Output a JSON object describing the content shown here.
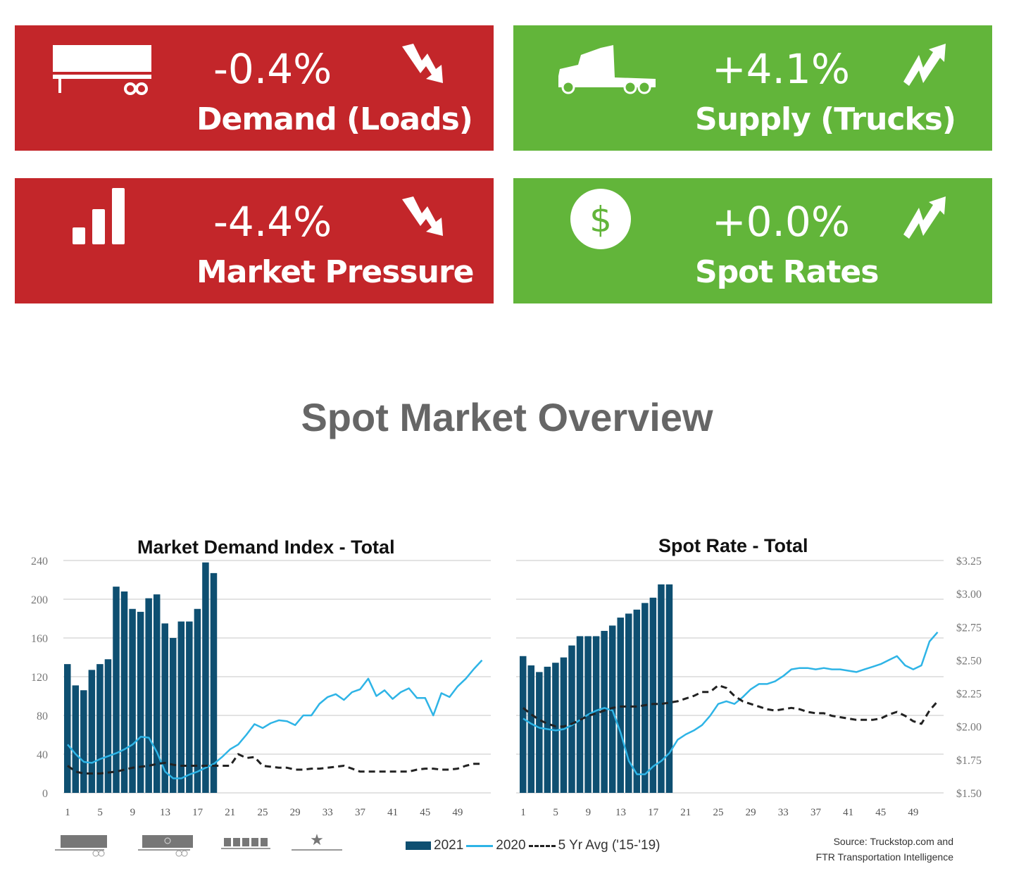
{
  "colors": {
    "red": "#c3262a",
    "green": "#62b53a",
    "bar": "#0e4f71",
    "line2020": "#2eb4e6",
    "avg": "#222222",
    "grid": "#e3e3e3"
  },
  "cards": [
    {
      "value": "-0.4%",
      "label": "Demand (Loads)",
      "icon": "trailer-icon",
      "trend": "trend-down-icon"
    },
    {
      "value": "+4.1%",
      "label": "Supply (Trucks)",
      "icon": "truck-icon",
      "trend": "trend-up-icon"
    },
    {
      "value": "-4.4%",
      "label": "Market Pressure",
      "icon": "bar-chart-icon",
      "trend": "trend-down-icon"
    },
    {
      "value": "+0.0%",
      "label": "Spot Rates",
      "icon": "dollar-icon",
      "trend": "trend-up-icon"
    }
  ],
  "section_title": "Spot Market Overview",
  "legend": {
    "s2021": "2021",
    "s2020": "2020",
    "avg": "5 Yr Avg ('15-'19)"
  },
  "source": {
    "line1": "Source: Truckstop.com and",
    "line2": "FTR Transportation Intelligence"
  },
  "chart_data": [
    {
      "type": "bar",
      "title": "Market Demand Index - Total",
      "ylim": [
        0,
        240
      ],
      "yticks": [
        "0",
        "40",
        "80",
        "120",
        "160",
        "200",
        "240"
      ],
      "xticks": [
        "1",
        "5",
        "9",
        "13",
        "17",
        "21",
        "25",
        "29",
        "33",
        "37",
        "41",
        "45",
        "49"
      ],
      "grid": true,
      "series": [
        {
          "name": "2021",
          "type": "bar",
          "values": [
            133,
            111,
            106,
            127,
            133,
            138,
            213,
            208,
            190,
            187,
            201,
            205,
            175,
            160,
            177,
            177,
            190,
            238,
            227
          ]
        },
        {
          "name": "2020",
          "type": "line",
          "values": [
            50,
            40,
            32,
            31,
            35,
            38,
            41,
            45,
            50,
            58,
            57,
            42,
            22,
            15,
            15,
            19,
            22,
            26,
            30,
            37,
            45,
            50,
            60,
            71,
            67,
            72,
            75,
            74,
            70,
            80,
            80,
            92,
            99,
            102,
            96,
            104,
            107,
            118,
            100,
            106,
            97,
            104,
            108,
            98,
            98,
            80,
            103,
            99,
            110,
            118,
            128,
            137
          ]
        },
        {
          "name": "5 Yr Avg ('15-'19)",
          "type": "line",
          "dashed": true,
          "values": [
            28,
            22,
            20,
            20,
            20,
            21,
            22,
            24,
            26,
            27,
            28,
            30,
            31,
            29,
            28,
            28,
            28,
            28,
            28,
            28,
            28,
            40,
            36,
            37,
            28,
            27,
            26,
            26,
            24,
            24,
            25,
            25,
            26,
            27,
            28,
            25,
            22,
            22,
            22,
            22,
            22,
            22,
            22,
            24,
            25,
            25,
            24,
            24,
            25,
            28,
            30,
            30
          ]
        }
      ]
    },
    {
      "type": "bar",
      "title": "Spot Rate - Total",
      "ylim": [
        1.5,
        3.25
      ],
      "yticks": [
        "$1.50",
        "$1.75",
        "$2.00",
        "$2.25",
        "$2.50",
        "$2.75",
        "$3.00",
        "$3.25"
      ],
      "xticks": [
        "1",
        "5",
        "9",
        "13",
        "17",
        "21",
        "25",
        "29",
        "33",
        "37",
        "41",
        "45",
        "49"
      ],
      "grid": true,
      "series": [
        {
          "name": "2021",
          "type": "bar",
          "values": [
            2.53,
            2.46,
            2.41,
            2.45,
            2.48,
            2.52,
            2.61,
            2.68,
            2.68,
            2.68,
            2.72,
            2.76,
            2.82,
            2.85,
            2.88,
            2.93,
            2.97,
            3.07,
            3.07
          ]
        },
        {
          "name": "2020",
          "type": "line",
          "values": [
            2.06,
            2.02,
            1.99,
            1.98,
            1.97,
            1.98,
            2.01,
            2.05,
            2.09,
            2.12,
            2.14,
            2.12,
            1.95,
            1.74,
            1.64,
            1.64,
            1.7,
            1.74,
            1.8,
            1.9,
            1.94,
            1.97,
            2.01,
            2.08,
            2.17,
            2.19,
            2.17,
            2.22,
            2.28,
            2.32,
            2.32,
            2.34,
            2.38,
            2.43,
            2.44,
            2.44,
            2.43,
            2.44,
            2.43,
            2.43,
            2.42,
            2.41,
            2.43,
            2.45,
            2.47,
            2.5,
            2.53,
            2.46,
            2.43,
            2.46,
            2.64,
            2.71
          ]
        },
        {
          "name": "5 Yr Avg ('15-'19)",
          "type": "line",
          "dashed": true,
          "values": [
            2.14,
            2.09,
            2.05,
            2.02,
            2.0,
            2.0,
            2.02,
            2.05,
            2.08,
            2.1,
            2.12,
            2.14,
            2.15,
            2.15,
            2.15,
            2.16,
            2.17,
            2.17,
            2.18,
            2.19,
            2.21,
            2.23,
            2.26,
            2.26,
            2.31,
            2.29,
            2.23,
            2.19,
            2.17,
            2.15,
            2.13,
            2.12,
            2.13,
            2.14,
            2.13,
            2.11,
            2.1,
            2.1,
            2.08,
            2.07,
            2.06,
            2.05,
            2.05,
            2.05,
            2.06,
            2.09,
            2.11,
            2.08,
            2.04,
            2.02,
            2.12,
            2.19
          ]
        }
      ]
    }
  ]
}
